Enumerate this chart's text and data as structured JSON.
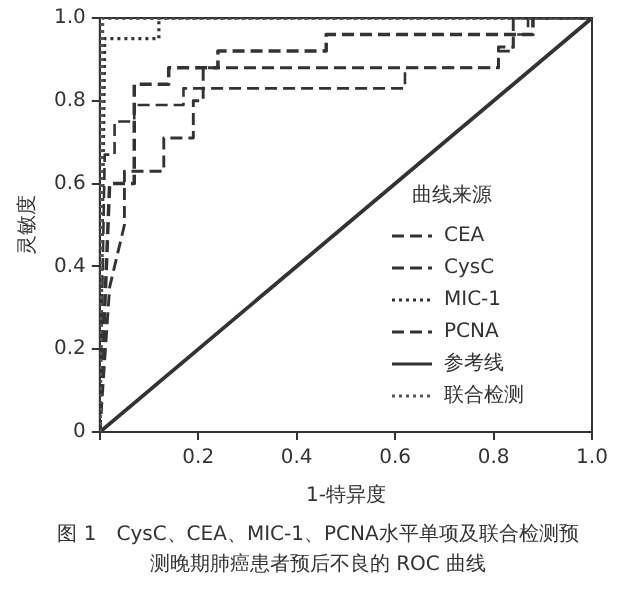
{
  "chart_data": {
    "type": "line",
    "xlabel": "1-特异度",
    "ylabel": "灵敏度",
    "legend_title": "曲线来源",
    "annotations": [
      "图 1　CysC、CEA、MIC-1、PCNA水平单项及联合检测预测晚期肺癌患者预后不良的 ROC 曲线"
    ],
    "xlim": [
      0,
      1
    ],
    "ylim": [
      0,
      1
    ],
    "xticks": [
      {
        "value": 0,
        "label": null
      },
      0.2,
      0.4,
      0.6,
      0.8,
      {
        "value": 1,
        "label": "1.0"
      }
    ],
    "yticks": [
      0,
      0.2,
      0.4,
      0.6,
      0.8,
      {
        "value": 1,
        "label": "1.0"
      }
    ],
    "legend": "bottom right",
    "marker": "none",
    "series": [
      {
        "name": "CEA",
        "color": "#333333",
        "line_style": "dashed",
        "x": [
          0,
          0.01,
          0.03,
          0.03,
          0.07,
          0.07,
          0.17,
          0.17,
          0.62,
          0.62,
          0.81,
          0.81,
          0.84,
          0.84,
          0.87,
          0.87,
          1
        ],
        "values": [
          0,
          0.67,
          0.67,
          0.75,
          0.75,
          0.79,
          0.79,
          0.83,
          0.83,
          0.88,
          0.88,
          0.92,
          0.92,
          0.96,
          0.96,
          1,
          1
        ]
      },
      {
        "name": "CysC",
        "color": "#333333",
        "line_style": "dashed",
        "x": [
          0,
          0.02,
          0.05,
          0.05,
          0.13,
          0.13,
          0.19,
          0.19,
          0.21,
          0.21,
          0.81,
          0.81,
          0.84,
          0.84,
          1
        ],
        "values": [
          0,
          0.35,
          0.5,
          0.63,
          0.63,
          0.71,
          0.71,
          0.8,
          0.8,
          0.88,
          0.88,
          0.93,
          0.93,
          1,
          1
        ]
      },
      {
        "name": "MIC-1",
        "color": "#333333",
        "line_style": "dotted",
        "x": [
          0,
          0.01,
          0.12,
          0.12,
          1
        ],
        "values": [
          0,
          0.95,
          0.95,
          1,
          1
        ]
      },
      {
        "name": "PCNA",
        "color": "#333333",
        "line_style": "dashed",
        "x": [
          0,
          0.02,
          0.07,
          0.07,
          0.14,
          0.14,
          0.24,
          0.24,
          0.46,
          0.46,
          0.88,
          0.88,
          1
        ],
        "values": [
          0,
          0.6,
          0.6,
          0.84,
          0.84,
          0.88,
          0.88,
          0.92,
          0.92,
          0.96,
          0.96,
          1,
          1
        ]
      },
      {
        "name": "参考线",
        "color": "#333333",
        "line_style": "solid",
        "x": [
          0,
          1
        ],
        "values": [
          0,
          1
        ]
      },
      {
        "name": "联合检测",
        "color": "#555555",
        "line_style": "dotted",
        "x": [
          0,
          0.005,
          1
        ],
        "values": [
          0,
          1,
          1
        ]
      }
    ]
  }
}
